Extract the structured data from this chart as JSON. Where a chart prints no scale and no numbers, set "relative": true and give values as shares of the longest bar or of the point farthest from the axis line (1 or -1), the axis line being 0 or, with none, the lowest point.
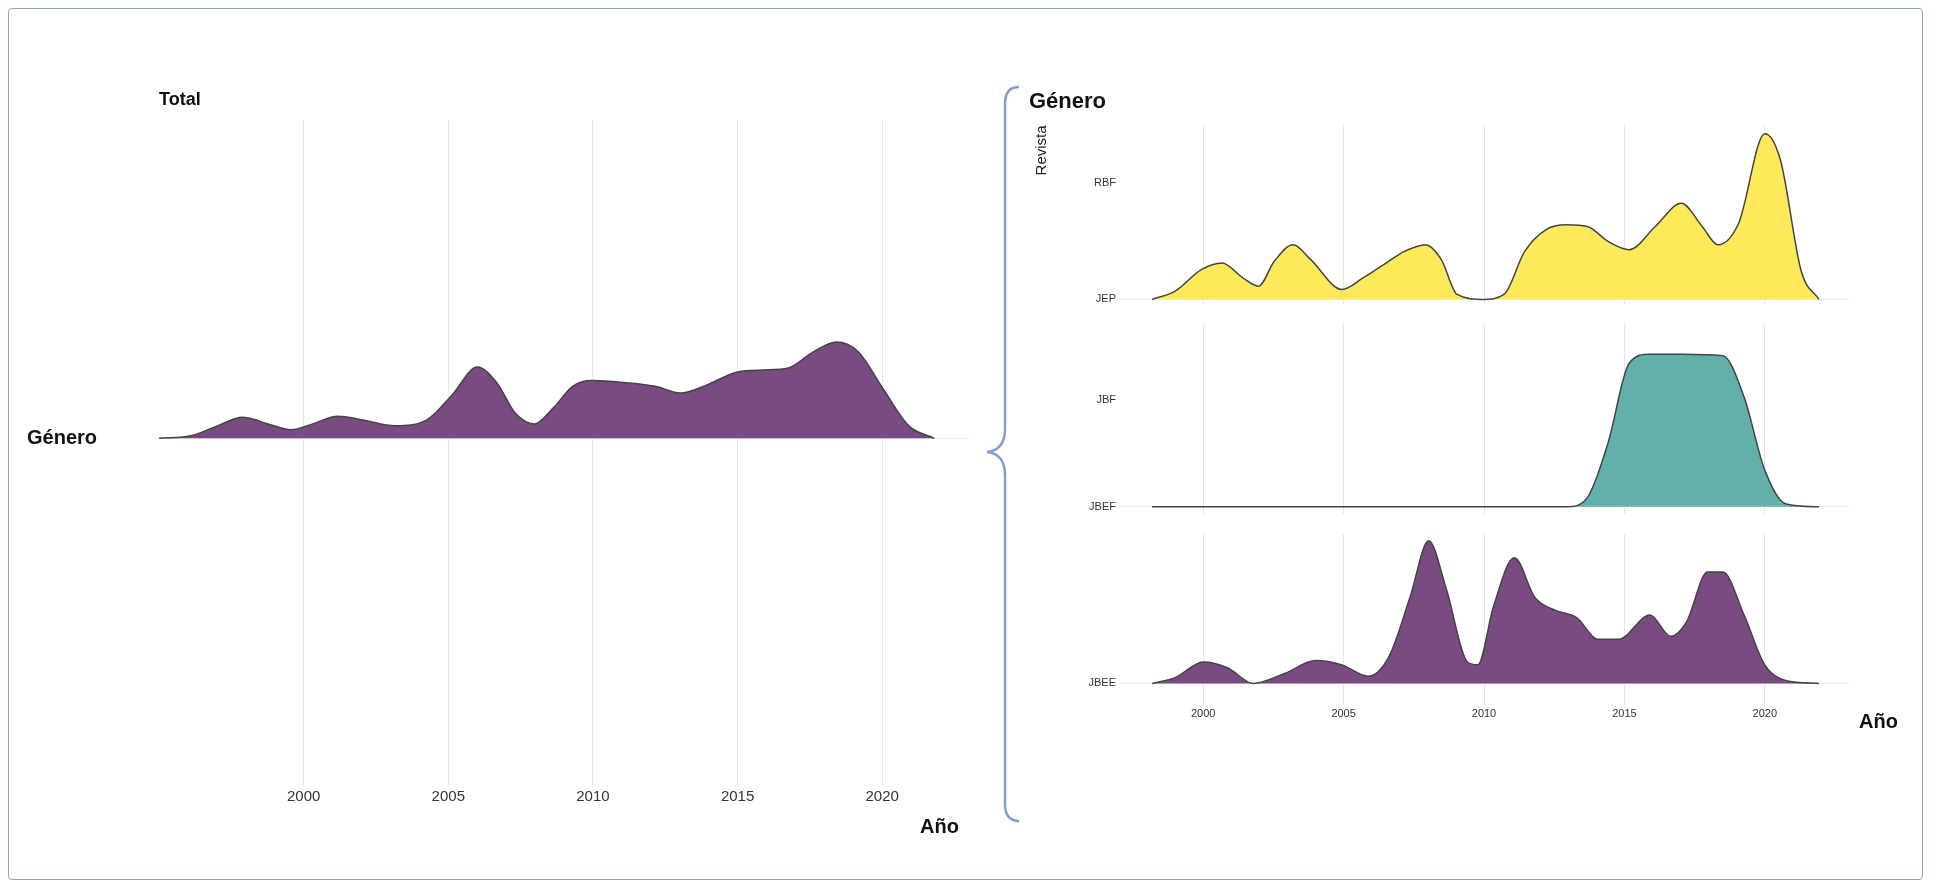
{
  "chart_data": [
    {
      "type": "area",
      "title": "Total",
      "ylabel": "Género",
      "xlabel": "Año",
      "relative": true,
      "xlim": [
        1995,
        2023
      ],
      "xticks": [
        2000,
        2005,
        2010,
        2015,
        2020
      ],
      "grid": true,
      "legend": false,
      "x": [
        1995,
        1996.14,
        1997.02,
        1997.89,
        1998.77,
        1999.56,
        2000.31,
        2001.18,
        2002.05,
        2003.16,
        2004.25,
        2005.13,
        2006.0,
        2006.67,
        2007.32,
        2007.98,
        2008.64,
        2009.3,
        2009.96,
        2011.05,
        2012.15,
        2013.03,
        2013.9,
        2015.0,
        2015.88,
        2016.75,
        2017.63,
        2018.42,
        2019.17,
        2020.04,
        2020.92,
        2021.8
      ],
      "series": [
        {
          "color": "#7a4a82",
          "values": [
            0,
            0.03,
            0.13,
            0.22,
            0.15,
            0.09,
            0.15,
            0.23,
            0.19,
            0.13,
            0.19,
            0.45,
            0.74,
            0.58,
            0.26,
            0.15,
            0.32,
            0.54,
            0.6,
            0.58,
            0.54,
            0.47,
            0.55,
            0.69,
            0.71,
            0.73,
            0.9,
            1,
            0.9,
            0.51,
            0.13,
            0
          ]
        }
      ]
    },
    {
      "type": "area",
      "title": "Género",
      "ylabel": "Revista",
      "relative": true,
      "y_categories": [
        "RBF",
        "JEP"
      ],
      "xlim": [
        1997,
        2023
      ],
      "xticks": [
        2000,
        2005,
        2010,
        2015,
        2020
      ],
      "tick_labels": "y",
      "grid": true,
      "legend": false,
      "series": [
        {
          "color": "#fde95a",
          "x": [
            1998.18,
            1999.0,
            1999.93,
            2000.67,
            2001.41,
            2001.97,
            2002.53,
            2003.2,
            2003.83,
            2004.94,
            2005.69,
            2006.43,
            2007.17,
            2007.92,
            2008.48,
            2009.04,
            2009.97,
            2010.71,
            2011.45,
            2012.2,
            2012.94,
            2013.68,
            2014.42,
            2015.17,
            2016.1,
            2017.03,
            2017.77,
            2018.33,
            2019.07,
            2020.0,
            2020.56,
            2021.3,
            2021.93
          ],
          "values": [
            0,
            0.05,
            0.18,
            0.22,
            0.13,
            0.08,
            0.23,
            0.33,
            0.24,
            0.06,
            0.13,
            0.21,
            0.29,
            0.33,
            0.24,
            0.03,
            0,
            0.03,
            0.29,
            0.42,
            0.45,
            0.44,
            0.35,
            0.3,
            0.44,
            0.58,
            0.44,
            0.33,
            0.46,
            1,
            0.84,
            0.17,
            0
          ]
        }
      ]
    },
    {
      "type": "area",
      "relative": true,
      "y_categories": [
        "JBF",
        "JBEF"
      ],
      "xlim": [
        1997,
        2023
      ],
      "xticks": [
        2000,
        2005,
        2010,
        2015,
        2020
      ],
      "tick_labels": "y",
      "grid": true,
      "legend": false,
      "series": [
        {
          "color": "#62b0aa",
          "x": [
            1998.18,
            2012.94,
            2013.68,
            2014.42,
            2015.17,
            2015.91,
            2017.03,
            2018.51,
            2019.26,
            2020.0,
            2020.74,
            2021.93
          ],
          "values": [
            0,
            0,
            0.06,
            0.42,
            0.94,
            1,
            1,
            0.99,
            0.72,
            0.24,
            0.02,
            0
          ]
        }
      ]
    },
    {
      "type": "area",
      "xlabel": "Año",
      "relative": true,
      "y_categories": [
        "JBEE"
      ],
      "xlim": [
        1997,
        2023
      ],
      "xticks": [
        2000,
        2005,
        2010,
        2015,
        2020
      ],
      "grid": true,
      "legend": false,
      "series": [
        {
          "color": "#7a4a82",
          "x": [
            1998.18,
            1999.0,
            2000.0,
            2000.86,
            2001.78,
            2002.9,
            2004.01,
            2004.94,
            2005.87,
            2006.62,
            2007.36,
            2008.03,
            2008.66,
            2009.41,
            2009.78,
            2010.34,
            2011.08,
            2011.82,
            2012.57,
            2013.31,
            2014.05,
            2014.8,
            2015.91,
            2016.65,
            2017.21,
            2017.96,
            2018.51,
            2019.26,
            2020.0,
            2020.74,
            2021.93
          ],
          "values": [
            0,
            0.04,
            0.15,
            0.11,
            0,
            0.07,
            0.16,
            0.13,
            0.05,
            0.19,
            0.6,
            1,
            0.66,
            0.15,
            0.13,
            0.54,
            0.88,
            0.6,
            0.51,
            0.46,
            0.31,
            0.31,
            0.48,
            0.33,
            0.43,
            0.78,
            0.78,
            0.48,
            0.13,
            0.02,
            0
          ]
        }
      ]
    }
  ]
}
